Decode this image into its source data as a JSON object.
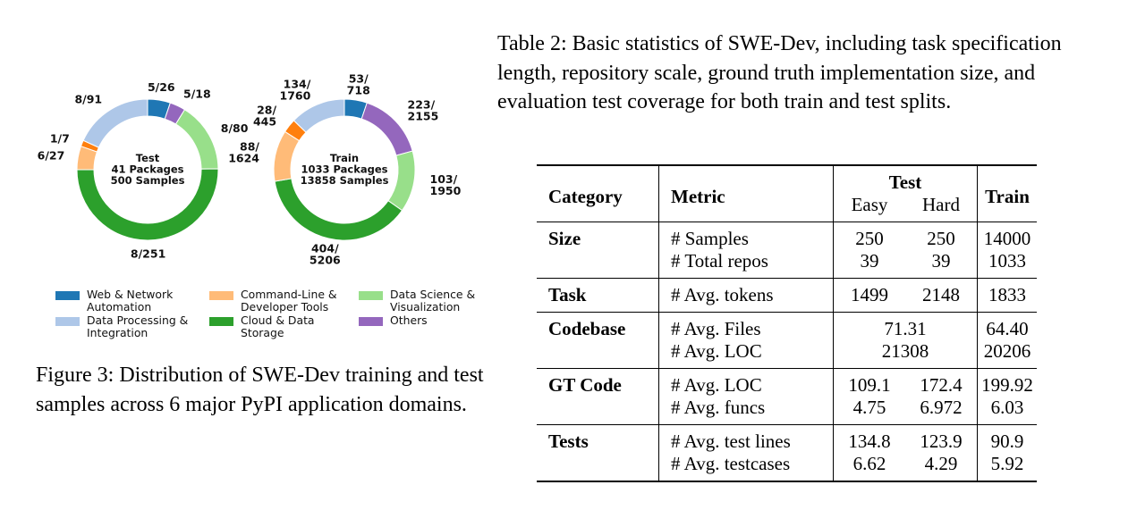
{
  "figure": {
    "legend": [
      {
        "key": "web",
        "label": "Web & Network\nAutomation",
        "color": "#1f77b4"
      },
      {
        "key": "cli",
        "label": "Command-Line &\nDeveloper Tools",
        "color": "#ffbb78"
      },
      {
        "key": "ds",
        "label": "Data Science &\nVisualization",
        "color": "#98df8a"
      },
      {
        "key": "dp",
        "label": "Data Processing &\nIntegration",
        "color": "#aec7e8"
      },
      {
        "key": "cloud",
        "label": "Cloud & Data\nStorage",
        "color": "#2ca02c"
      },
      {
        "key": "others",
        "label": "Others",
        "color": "#9467bd"
      }
    ],
    "test_donut": {
      "center_lines": [
        "Test",
        "41 Packages",
        "500 Samples"
      ],
      "segments": [
        {
          "key": "web",
          "label": "5/26",
          "value": 26
        },
        {
          "key": "others",
          "label": "5/18",
          "value": 18
        },
        {
          "key": "ds",
          "label": "8/80",
          "value": 80
        },
        {
          "key": "cloud",
          "label": "8/251",
          "value": 251
        },
        {
          "key": "cli",
          "label": "6/27",
          "value": 27
        },
        {
          "key": "extra",
          "label": "1/7",
          "value": 7
        },
        {
          "key": "dp",
          "label": "8/91",
          "value": 91
        }
      ]
    },
    "train_donut": {
      "center_lines": [
        "Train",
        "1033 Packages",
        "13858 Samples"
      ],
      "segments": [
        {
          "key": "web",
          "label": "53/\n718",
          "value": 718
        },
        {
          "key": "others",
          "label": "223/\n2155",
          "value": 2155
        },
        {
          "key": "ds",
          "label": "103/\n1950",
          "value": 1950
        },
        {
          "key": "cloud",
          "label": "404/\n5206",
          "value": 5206
        },
        {
          "key": "cli",
          "label": "88/\n1624",
          "value": 1624
        },
        {
          "key": "extra",
          "label": "28/\n445",
          "value": 445
        },
        {
          "key": "dp",
          "label": "134/\n1760",
          "value": 1760
        }
      ]
    },
    "extra_color": "#ff7f0e",
    "caption": "Figure 3: Distribution of SWE-Dev training and test samples across 6 major PyPI application domains."
  },
  "table": {
    "caption": "Table 2: Basic statistics of SWE-Dev, including task specification length, repository scale, ground truth implementation size, and evaluation test coverage for both train and test splits.",
    "headers": {
      "category": "Category",
      "metric": "Metric",
      "test": "Test",
      "easy": "Easy",
      "hard": "Hard",
      "train": "Train"
    },
    "groups": [
      {
        "category": "Size",
        "rows": [
          {
            "metric": "# Samples",
            "easy": "250",
            "hard": "250",
            "train": "14000"
          },
          {
            "metric": "# Total repos",
            "easy": "39",
            "hard": "39",
            "train": "1033"
          }
        ]
      },
      {
        "category": "Task",
        "rows": [
          {
            "metric": "# Avg. tokens",
            "easy": "1499",
            "hard": "2148",
            "train": "1833"
          }
        ]
      },
      {
        "category": "Codebase",
        "rows": [
          {
            "metric": "# Avg. Files",
            "merged": "71.31",
            "train": "64.40"
          },
          {
            "metric": "# Avg. LOC",
            "merged": "21308",
            "train": "20206"
          }
        ]
      },
      {
        "category": "GT Code",
        "rows": [
          {
            "metric": "# Avg. LOC",
            "easy": "109.1",
            "hard": "172.4",
            "train": "199.92"
          },
          {
            "metric": "# Avg. funcs",
            "easy": "4.75",
            "hard": "6.972",
            "train": "6.03"
          }
        ]
      },
      {
        "category": "Tests",
        "rows": [
          {
            "metric": "# Avg. test lines",
            "easy": "134.8",
            "hard": "123.9",
            "train": "90.9"
          },
          {
            "metric": "# Avg. testcases",
            "easy": "6.62",
            "hard": "4.29",
            "train": "5.92"
          }
        ]
      }
    ]
  }
}
